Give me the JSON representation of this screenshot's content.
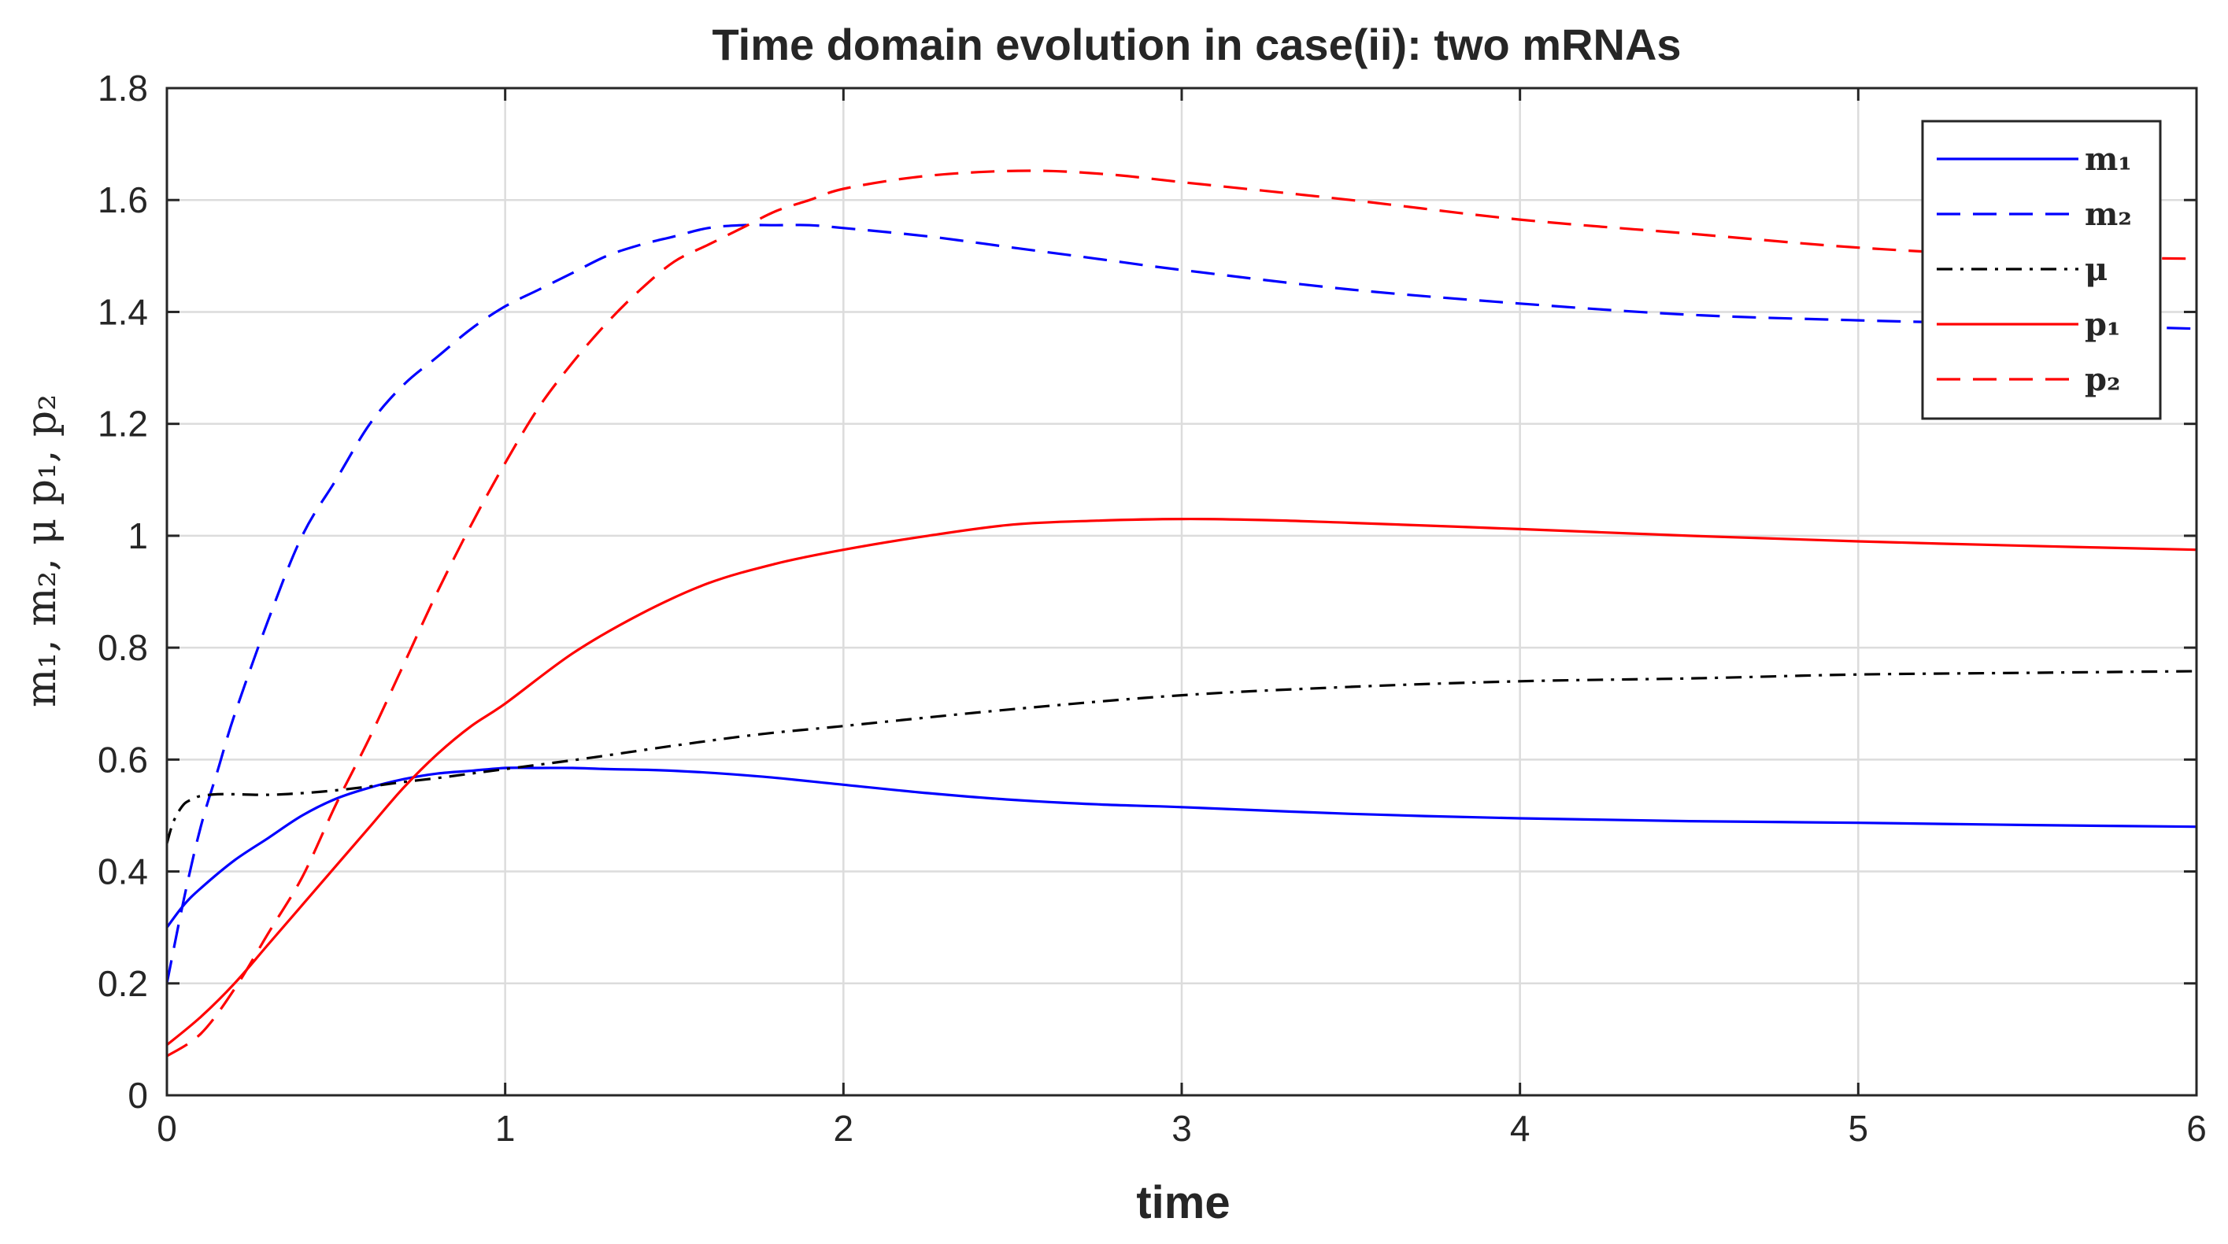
{
  "chart_data": {
    "type": "line",
    "title": "Time domain evolution in case(ii): two mRNAs",
    "xlabel": "time",
    "ylabel": "m₁, m₂, μ p₁, p₂",
    "xlim": [
      0,
      6
    ],
    "ylim": [
      0,
      1.8
    ],
    "xticks": [
      0,
      1,
      2,
      3,
      4,
      5,
      6
    ],
    "yticks": [
      0,
      0.2,
      0.4,
      0.6,
      0.8,
      1,
      1.2,
      1.4,
      1.6,
      1.8
    ],
    "xtick_labels": [
      "0",
      "1",
      "2",
      "3",
      "4",
      "5",
      "6"
    ],
    "ytick_labels": [
      "0",
      "0.2",
      "0.4",
      "0.6",
      "0.8",
      "1",
      "1.2",
      "1.4",
      "1.6",
      "1.8"
    ],
    "grid": true,
    "legend_position": "top-right",
    "series": [
      {
        "name": "m₁",
        "color": "#0000ff",
        "style": "solid",
        "x": [
          0,
          0.05,
          0.1,
          0.2,
          0.3,
          0.4,
          0.5,
          0.6,
          0.7,
          0.8,
          0.9,
          1.0,
          1.1,
          1.2,
          1.3,
          1.5,
          1.75,
          2.0,
          2.25,
          2.5,
          2.75,
          3.0,
          3.5,
          4.0,
          4.5,
          5.0,
          5.5,
          6.0
        ],
        "y": [
          0.3,
          0.34,
          0.37,
          0.42,
          0.46,
          0.5,
          0.53,
          0.55,
          0.565,
          0.575,
          0.58,
          0.585,
          0.585,
          0.585,
          0.583,
          0.58,
          0.57,
          0.555,
          0.54,
          0.528,
          0.52,
          0.515,
          0.503,
          0.495,
          0.49,
          0.487,
          0.483,
          0.48
        ]
      },
      {
        "name": "m₂",
        "color": "#0000ff",
        "style": "dashed",
        "x": [
          0,
          0.05,
          0.1,
          0.15,
          0.2,
          0.3,
          0.4,
          0.5,
          0.6,
          0.7,
          0.8,
          0.9,
          1.0,
          1.1,
          1.2,
          1.3,
          1.4,
          1.5,
          1.6,
          1.7,
          1.8,
          1.9,
          2.0,
          2.25,
          2.5,
          2.75,
          3.0,
          3.5,
          4.0,
          4.5,
          5.0,
          5.5,
          6.0
        ],
        "y": [
          0.2,
          0.35,
          0.48,
          0.58,
          0.68,
          0.85,
          1.0,
          1.1,
          1.2,
          1.27,
          1.32,
          1.37,
          1.41,
          1.44,
          1.47,
          1.5,
          1.52,
          1.535,
          1.55,
          1.555,
          1.555,
          1.555,
          1.55,
          1.535,
          1.515,
          1.495,
          1.475,
          1.44,
          1.415,
          1.395,
          1.385,
          1.378,
          1.37
        ]
      },
      {
        "name": "μ",
        "color": "#000000",
        "style": "dashdot",
        "x": [
          0,
          0.02,
          0.05,
          0.08,
          0.1,
          0.15,
          0.2,
          0.3,
          0.4,
          0.5,
          0.6,
          0.7,
          0.8,
          0.9,
          1.0,
          1.25,
          1.5,
          1.75,
          2.0,
          2.5,
          3.0,
          3.5,
          4.0,
          4.5,
          5.0,
          5.5,
          6.0
        ],
        "y": [
          0.45,
          0.49,
          0.52,
          0.53,
          0.535,
          0.538,
          0.538,
          0.537,
          0.54,
          0.545,
          0.552,
          0.56,
          0.567,
          0.575,
          0.583,
          0.603,
          0.625,
          0.645,
          0.66,
          0.69,
          0.715,
          0.73,
          0.74,
          0.745,
          0.752,
          0.755,
          0.758
        ]
      },
      {
        "name": "p₁",
        "color": "#ff0000",
        "style": "solid",
        "x": [
          0,
          0.1,
          0.2,
          0.3,
          0.4,
          0.5,
          0.6,
          0.7,
          0.8,
          0.9,
          1.0,
          1.2,
          1.4,
          1.6,
          1.8,
          2.0,
          2.25,
          2.5,
          2.75,
          3.0,
          3.25,
          3.5,
          4.0,
          4.5,
          5.0,
          5.5,
          6.0
        ],
        "y": [
          0.09,
          0.14,
          0.2,
          0.27,
          0.34,
          0.41,
          0.48,
          0.55,
          0.61,
          0.66,
          0.7,
          0.79,
          0.86,
          0.915,
          0.95,
          0.975,
          1.0,
          1.02,
          1.027,
          1.03,
          1.028,
          1.023,
          1.012,
          1.0,
          0.99,
          0.982,
          0.975
        ]
      },
      {
        "name": "p₂",
        "color": "#ff0000",
        "style": "dashed",
        "x": [
          0,
          0.1,
          0.2,
          0.3,
          0.4,
          0.5,
          0.6,
          0.7,
          0.8,
          0.9,
          1.0,
          1.1,
          1.2,
          1.3,
          1.4,
          1.5,
          1.6,
          1.7,
          1.8,
          1.9,
          2.0,
          2.2,
          2.4,
          2.6,
          2.8,
          3.0,
          3.5,
          4.0,
          4.5,
          5.0,
          5.5,
          6.0
        ],
        "y": [
          0.07,
          0.11,
          0.19,
          0.29,
          0.39,
          0.52,
          0.64,
          0.77,
          0.9,
          1.02,
          1.13,
          1.23,
          1.31,
          1.38,
          1.44,
          1.49,
          1.52,
          1.55,
          1.58,
          1.6,
          1.62,
          1.64,
          1.65,
          1.652,
          1.645,
          1.632,
          1.6,
          1.565,
          1.54,
          1.515,
          1.5,
          1.495
        ]
      }
    ]
  }
}
